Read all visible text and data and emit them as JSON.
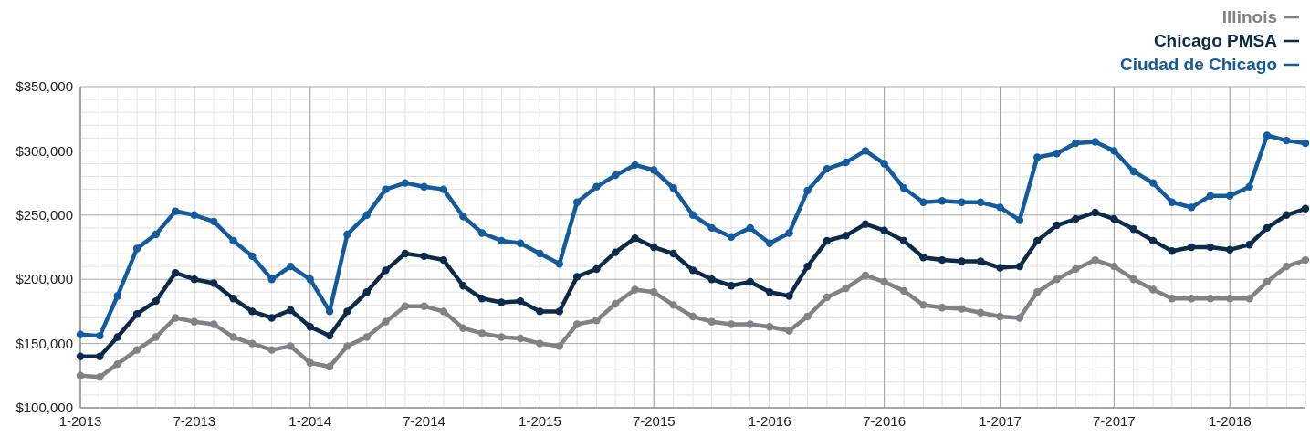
{
  "chart_data": {
    "type": "line",
    "x": [
      "2013-01",
      "2013-02",
      "2013-03",
      "2013-04",
      "2013-05",
      "2013-06",
      "2013-07",
      "2013-08",
      "2013-09",
      "2013-10",
      "2013-11",
      "2013-12",
      "2014-01",
      "2014-02",
      "2014-03",
      "2014-04",
      "2014-05",
      "2014-06",
      "2014-07",
      "2014-08",
      "2014-09",
      "2014-10",
      "2014-11",
      "2014-12",
      "2015-01",
      "2015-02",
      "2015-03",
      "2015-04",
      "2015-05",
      "2015-06",
      "2015-07",
      "2015-08",
      "2015-09",
      "2015-10",
      "2015-11",
      "2015-12",
      "2016-01",
      "2016-02",
      "2016-03",
      "2016-04",
      "2016-05",
      "2016-06",
      "2016-07",
      "2016-08",
      "2016-09",
      "2016-10",
      "2016-11",
      "2016-12",
      "2017-01",
      "2017-02",
      "2017-03",
      "2017-04",
      "2017-05",
      "2017-06",
      "2017-07",
      "2017-08",
      "2017-09",
      "2017-10",
      "2017-11",
      "2017-12",
      "2018-01",
      "2018-02",
      "2018-03",
      "2018-04",
      "2018-05"
    ],
    "series": [
      {
        "name": "Illinois",
        "color": "#808285",
        "values": [
          125000,
          124000,
          134000,
          145000,
          155000,
          170000,
          167000,
          165000,
          155000,
          150000,
          145000,
          148000,
          135000,
          132000,
          148000,
          155000,
          167000,
          179000,
          179000,
          175000,
          162000,
          158000,
          155000,
          154000,
          150000,
          148000,
          165000,
          168000,
          181000,
          192000,
          190000,
          180000,
          171000,
          167000,
          165000,
          165000,
          163000,
          160000,
          171000,
          186000,
          193000,
          203000,
          198000,
          191000,
          180000,
          178000,
          177000,
          174000,
          171000,
          170000,
          190000,
          200000,
          208000,
          215000,
          210000,
          200000,
          192000,
          185000,
          185000,
          185000,
          185000,
          185000,
          198000,
          210000,
          215000
        ]
      },
      {
        "name": "Chicago PMSA",
        "color": "#0c2b4a",
        "values": [
          140000,
          140000,
          155000,
          173000,
          183000,
          205000,
          200000,
          197000,
          185000,
          175000,
          170000,
          176000,
          163000,
          156000,
          175000,
          190000,
          207000,
          220000,
          218000,
          215000,
          195000,
          185000,
          182000,
          183000,
          175000,
          175000,
          202000,
          208000,
          221000,
          232000,
          225000,
          220000,
          207000,
          200000,
          195000,
          198000,
          190000,
          187000,
          210000,
          230000,
          234000,
          243000,
          238000,
          230000,
          217000,
          215000,
          214000,
          214000,
          209000,
          210000,
          230000,
          242000,
          247000,
          252000,
          247000,
          239000,
          230000,
          222000,
          225000,
          225000,
          223000,
          227000,
          240000,
          250000,
          255000
        ]
      },
      {
        "name": "Ciudad de Chicago",
        "color": "#135b9c",
        "values": [
          157000,
          156000,
          187000,
          224000,
          235000,
          253000,
          250000,
          245000,
          230000,
          218000,
          200000,
          210000,
          200000,
          175000,
          235000,
          250000,
          270000,
          275000,
          272000,
          270000,
          249000,
          236000,
          230000,
          228000,
          220000,
          212000,
          260000,
          272000,
          281000,
          289000,
          285000,
          271000,
          250000,
          240000,
          233000,
          240000,
          228000,
          236000,
          269000,
          286000,
          291000,
          300000,
          290000,
          271000,
          260000,
          261000,
          260000,
          260000,
          256000,
          246000,
          295000,
          298000,
          306000,
          307000,
          300000,
          284000,
          275000,
          260000,
          256000,
          265000,
          265000,
          272000,
          312000,
          308000,
          306000
        ]
      }
    ],
    "xlim": [
      "2013-01",
      "2018-05"
    ],
    "xticks": [
      {
        "value": "2013-01",
        "label": "1-2013"
      },
      {
        "value": "2013-07",
        "label": "7-2013"
      },
      {
        "value": "2014-01",
        "label": "1-2014"
      },
      {
        "value": "2014-07",
        "label": "7-2014"
      },
      {
        "value": "2015-01",
        "label": "1-2015"
      },
      {
        "value": "2015-07",
        "label": "7-2015"
      },
      {
        "value": "2016-01",
        "label": "1-2016"
      },
      {
        "value": "2016-07",
        "label": "7-2016"
      },
      {
        "value": "2017-01",
        "label": "1-2017"
      },
      {
        "value": "2017-07",
        "label": "7-2017"
      },
      {
        "value": "2018-01",
        "label": "1-2018"
      }
    ],
    "ylim": [
      100000,
      350000
    ],
    "yticks": [
      {
        "value": 100000,
        "label": "$100,000"
      },
      {
        "value": 150000,
        "label": "$150,000"
      },
      {
        "value": 200000,
        "label": "$200,000"
      },
      {
        "value": 250000,
        "label": "$250,000"
      },
      {
        "value": 300000,
        "label": "$300,000"
      },
      {
        "value": 350000,
        "label": "$350,000"
      }
    ],
    "grid": true,
    "legend": "top right",
    "marker": "circle",
    "line_style": "solid"
  }
}
